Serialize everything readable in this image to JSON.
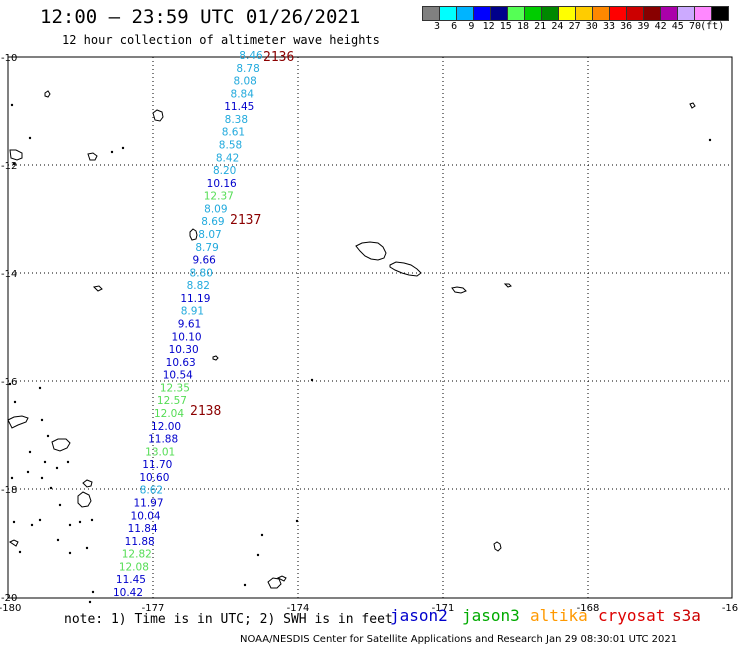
{
  "header": {
    "title": "12:00 — 23:59 UTC 01/26/2021",
    "subtitle": "12 hour collection of altimeter wave heights"
  },
  "colorbar": {
    "colors": [
      "#808080",
      "#00ffff",
      "#00b4ff",
      "#0000ff",
      "#00008b",
      "#55ff55",
      "#00cc00",
      "#008800",
      "#ffff00",
      "#ffcc00",
      "#ff8800",
      "#ff0000",
      "#cc0000",
      "#880000",
      "#aa00aa",
      "#ccaaff",
      "#ff88ff",
      "#000000"
    ],
    "labels": [
      "3",
      "6",
      "9",
      "12",
      "15",
      "18",
      "21",
      "24",
      "27",
      "30",
      "33",
      "36",
      "39",
      "42",
      "45",
      "70",
      "(ft)"
    ]
  },
  "axes": {
    "lon_labels": [
      "-180",
      "-177",
      "-174",
      "-171",
      "-168",
      "-16"
    ],
    "lat_labels": [
      "-10",
      "-12",
      "-14",
      "-16",
      "-18",
      "-20"
    ]
  },
  "passes": [
    {
      "label": "2136",
      "color": "#8b0000"
    },
    {
      "label": "2137",
      "color": "#8b0000"
    },
    {
      "label": "2138",
      "color": "#8b0000"
    }
  ],
  "swh": [
    {
      "v": "8.46",
      "c": "#22aadd"
    },
    {
      "v": "8.78",
      "c": "#22aadd"
    },
    {
      "v": "8.08",
      "c": "#22aadd"
    },
    {
      "v": "8.84",
      "c": "#22aadd"
    },
    {
      "v": "11.45",
      "c": "#0000cc"
    },
    {
      "v": "8.38",
      "c": "#22aadd"
    },
    {
      "v": "8.61",
      "c": "#22aadd"
    },
    {
      "v": "8.58",
      "c": "#22aadd"
    },
    {
      "v": "8.42",
      "c": "#22aadd"
    },
    {
      "v": "8.20",
      "c": "#22aadd"
    },
    {
      "v": "10.16",
      "c": "#0000cc"
    },
    {
      "v": "12.37",
      "c": "#55dd55"
    },
    {
      "v": "8.09",
      "c": "#22aadd"
    },
    {
      "v": "8.69",
      "c": "#22aadd"
    },
    {
      "v": "8.07",
      "c": "#22aadd"
    },
    {
      "v": "8.79",
      "c": "#22aadd"
    },
    {
      "v": "9.66",
      "c": "#0000cc"
    },
    {
      "v": "8.80",
      "c": "#22aadd"
    },
    {
      "v": "8.82",
      "c": "#22aadd"
    },
    {
      "v": "11.19",
      "c": "#0000cc"
    },
    {
      "v": "8.91",
      "c": "#22aadd"
    },
    {
      "v": "9.61",
      "c": "#0000cc"
    },
    {
      "v": "10.10",
      "c": "#0000cc"
    },
    {
      "v": "10.30",
      "c": "#0000cc"
    },
    {
      "v": "10.63",
      "c": "#0000cc"
    },
    {
      "v": "10.54",
      "c": "#0000cc"
    },
    {
      "v": "12.35",
      "c": "#55dd55"
    },
    {
      "v": "12.57",
      "c": "#55dd55"
    },
    {
      "v": "12.04",
      "c": "#55dd55"
    },
    {
      "v": "12.00",
      "c": "#0000cc"
    },
    {
      "v": "11.88",
      "c": "#0000cc"
    },
    {
      "v": "13.01",
      "c": "#55dd55"
    },
    {
      "v": "11.70",
      "c": "#0000cc"
    },
    {
      "v": "10.60",
      "c": "#0000cc"
    },
    {
      "v": "8.62",
      "c": "#22aadd"
    },
    {
      "v": "11.97",
      "c": "#0000cc"
    },
    {
      "v": "10.04",
      "c": "#0000cc"
    },
    {
      "v": "11.84",
      "c": "#0000cc"
    },
    {
      "v": "11.88",
      "c": "#0000cc"
    },
    {
      "v": "12.82",
      "c": "#55dd55"
    },
    {
      "v": "12.08",
      "c": "#55dd55"
    },
    {
      "v": "11.45",
      "c": "#0000cc"
    },
    {
      "v": "10.42",
      "c": "#0000cc"
    }
  ],
  "footer": {
    "note": "note: 1) Time is in UTC; 2) SWH is in feet",
    "satellites": [
      {
        "name": "jason2",
        "color": "#0000cc"
      },
      {
        "name": "jason3",
        "color": "#00aa00"
      },
      {
        "name": "altika",
        "color": "#ff9900"
      },
      {
        "name": "cryosat",
        "color": "#dd0000"
      },
      {
        "name": "s3a",
        "color": "#cc0000"
      }
    ],
    "credit": "NOAA/NESDIS Center for Satellite Applications and Research    Jan 29 08:30:01 UTC 2021"
  }
}
